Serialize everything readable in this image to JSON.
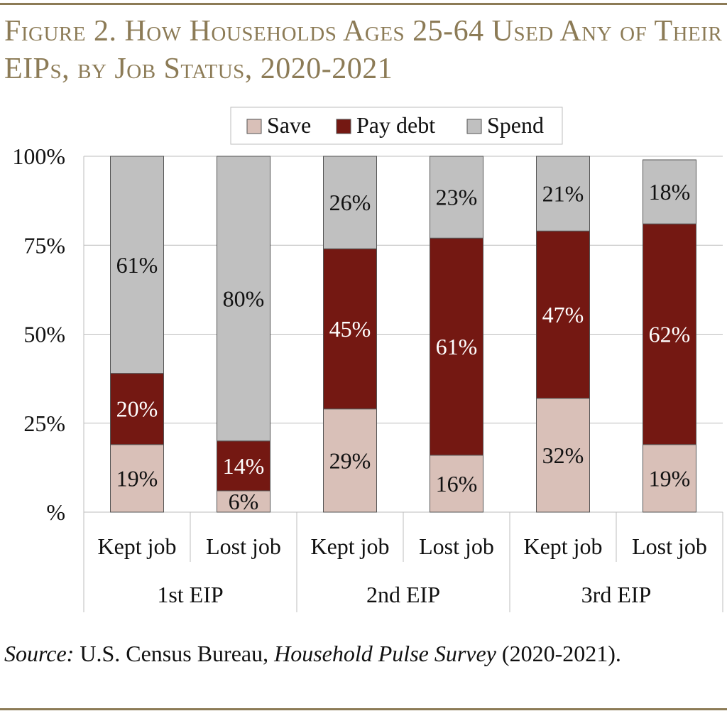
{
  "title": "Figure 2. How Households Ages 25-64 Used Any of Their EIPs, by Job Status, 2020-2021",
  "source": {
    "label": "Source:",
    "agency": " U.S. Census Bureau, ",
    "survey": "Household Pulse Survey",
    "years": " (2020-2021)."
  },
  "colors": {
    "save": "#d9c0b8",
    "pay_debt": "#741812",
    "spend": "#c0c0c0",
    "accent": "#8c7b56"
  },
  "chart_data": {
    "type": "bar",
    "stacked": true,
    "title": "",
    "xlabel": "",
    "ylabel": "",
    "ylim": [
      0,
      100
    ],
    "yticks": [
      "%",
      "25%",
      "50%",
      "75%",
      "100%"
    ],
    "grid": true,
    "legend": "top",
    "categories": [
      "Kept job",
      "Lost job",
      "Kept job",
      "Lost job",
      "Kept job",
      "Lost job"
    ],
    "groups": [
      {
        "label": "1st EIP",
        "categories": [
          0,
          1
        ]
      },
      {
        "label": "2nd EIP",
        "categories": [
          2,
          3
        ]
      },
      {
        "label": "3rd EIP",
        "categories": [
          4,
          5
        ]
      }
    ],
    "series": [
      {
        "name": "Save",
        "values": [
          19,
          6,
          29,
          16,
          32,
          19
        ],
        "labels": [
          "19%",
          "6%",
          "29%",
          "16%",
          "32%",
          "19%"
        ]
      },
      {
        "name": "Pay debt",
        "values": [
          20,
          14,
          45,
          61,
          47,
          62
        ],
        "labels": [
          "20%",
          "14%",
          "45%",
          "61%",
          "47%",
          "62%"
        ]
      },
      {
        "name": "Spend",
        "values": [
          61,
          80,
          26,
          23,
          21,
          18
        ],
        "labels": [
          "61%",
          "80%",
          "26%",
          "23%",
          "21%",
          "18%"
        ]
      }
    ]
  }
}
